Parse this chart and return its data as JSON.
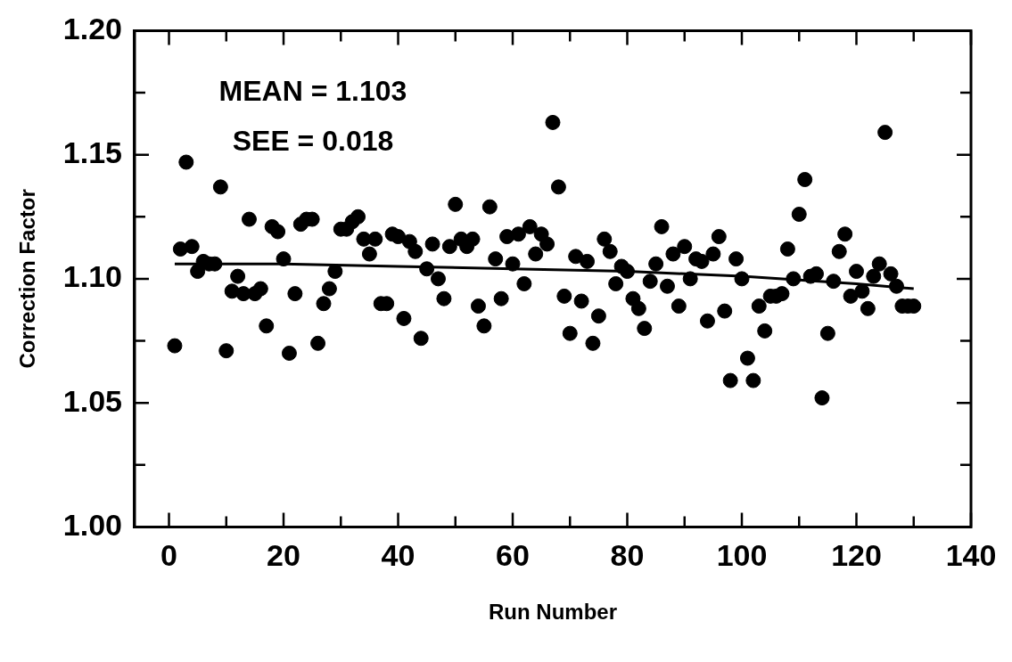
{
  "chart_data": {
    "type": "scatter",
    "xlabel": "Run Number",
    "ylabel": "Correction Factor",
    "annotations": [
      "MEAN = 1.103",
      "SEE = 0.018"
    ],
    "xlim": [
      -6,
      140
    ],
    "xticks": [
      0,
      {
        "value": 10,
        "label": null
      },
      20,
      {
        "value": 30,
        "label": null
      },
      40,
      {
        "value": 50,
        "label": null
      },
      60,
      {
        "value": 70,
        "label": null
      },
      80,
      {
        "value": 90,
        "label": null
      },
      100,
      {
        "value": 110,
        "label": null
      },
      120,
      {
        "value": 130,
        "label": null
      },
      140
    ],
    "ylim": [
      1.0,
      1.2
    ],
    "yticks": [
      {
        "value": 1.0,
        "label": "1.00"
      },
      {
        "value": 1.025,
        "label": null
      },
      {
        "value": 1.05,
        "label": "1.05"
      },
      {
        "value": 1.075,
        "label": null
      },
      {
        "value": 1.1,
        "label": "1.10"
      },
      {
        "value": 1.125,
        "label": null
      },
      {
        "value": 1.15,
        "label": "1.15"
      },
      {
        "value": 1.175,
        "label": null
      },
      {
        "value": 1.2,
        "label": "1.20"
      }
    ],
    "grid": false,
    "legend": false,
    "series": [
      {
        "type": "scatter",
        "marker": "circle",
        "color": "#000000",
        "x": [
          1,
          2,
          3,
          4,
          5,
          6,
          7,
          8,
          9,
          10,
          11,
          12,
          13,
          14,
          15,
          16,
          17,
          18,
          19,
          20,
          21,
          22,
          23,
          24,
          25,
          26,
          27,
          28,
          29,
          30,
          31,
          32,
          33,
          34,
          35,
          36,
          37,
          38,
          39,
          40,
          41,
          42,
          43,
          44,
          45,
          46,
          47,
          48,
          49,
          50,
          51,
          52,
          53,
          54,
          55,
          56,
          57,
          58,
          59,
          60,
          61,
          62,
          63,
          64,
          65,
          66,
          67,
          68,
          69,
          70,
          71,
          72,
          73,
          74,
          75,
          76,
          77,
          78,
          79,
          80,
          81,
          82,
          83,
          84,
          85,
          86,
          87,
          88,
          89,
          90,
          91,
          92,
          93,
          94,
          95,
          96,
          97,
          98,
          99,
          100,
          101,
          102,
          103,
          104,
          105,
          106,
          107,
          108,
          109,
          110,
          111,
          112,
          113,
          114,
          115,
          116,
          117,
          118,
          119,
          120,
          121,
          122,
          123,
          124,
          125,
          126,
          127,
          128,
          129,
          130
        ],
        "values": [
          1.073,
          1.112,
          1.147,
          1.113,
          1.103,
          1.107,
          1.106,
          1.106,
          1.137,
          1.071,
          1.095,
          1.101,
          1.094,
          1.124,
          1.094,
          1.096,
          1.081,
          1.121,
          1.119,
          1.108,
          1.07,
          1.094,
          1.122,
          1.124,
          1.124,
          1.074,
          1.09,
          1.096,
          1.103,
          1.12,
          1.12,
          1.123,
          1.125,
          1.116,
          1.11,
          1.116,
          1.09,
          1.09,
          1.118,
          1.117,
          1.084,
          1.115,
          1.111,
          1.076,
          1.104,
          1.114,
          1.1,
          1.092,
          1.113,
          1.13,
          1.116,
          1.113,
          1.116,
          1.089,
          1.081,
          1.129,
          1.108,
          1.092,
          1.117,
          1.106,
          1.118,
          1.098,
          1.121,
          1.11,
          1.118,
          1.114,
          1.163,
          1.137,
          1.093,
          1.078,
          1.109,
          1.091,
          1.107,
          1.074,
          1.085,
          1.116,
          1.111,
          1.098,
          1.105,
          1.103,
          1.092,
          1.088,
          1.08,
          1.099,
          1.106,
          1.121,
          1.097,
          1.11,
          1.089,
          1.113,
          1.1,
          1.108,
          1.107,
          1.083,
          1.11,
          1.117,
          1.087,
          1.059,
          1.108,
          1.1,
          1.068,
          1.059,
          1.089,
          1.079,
          1.093,
          1.093,
          1.094,
          1.112,
          1.1,
          1.126,
          1.14,
          1.101,
          1.102,
          1.052,
          1.078,
          1.099,
          1.111,
          1.118,
          1.093,
          1.103,
          1.095,
          1.088,
          1.101,
          1.106,
          1.159,
          1.102,
          1.097,
          1.089,
          1.089,
          1.089
        ]
      },
      {
        "type": "line",
        "marker": "none",
        "line_style": "solid",
        "color": "#000000",
        "x": [
          1,
          20,
          40,
          60,
          80,
          100,
          120,
          130
        ],
        "values": [
          1.106,
          1.106,
          1.105,
          1.104,
          1.103,
          1.101,
          1.098,
          1.096
        ]
      }
    ]
  }
}
